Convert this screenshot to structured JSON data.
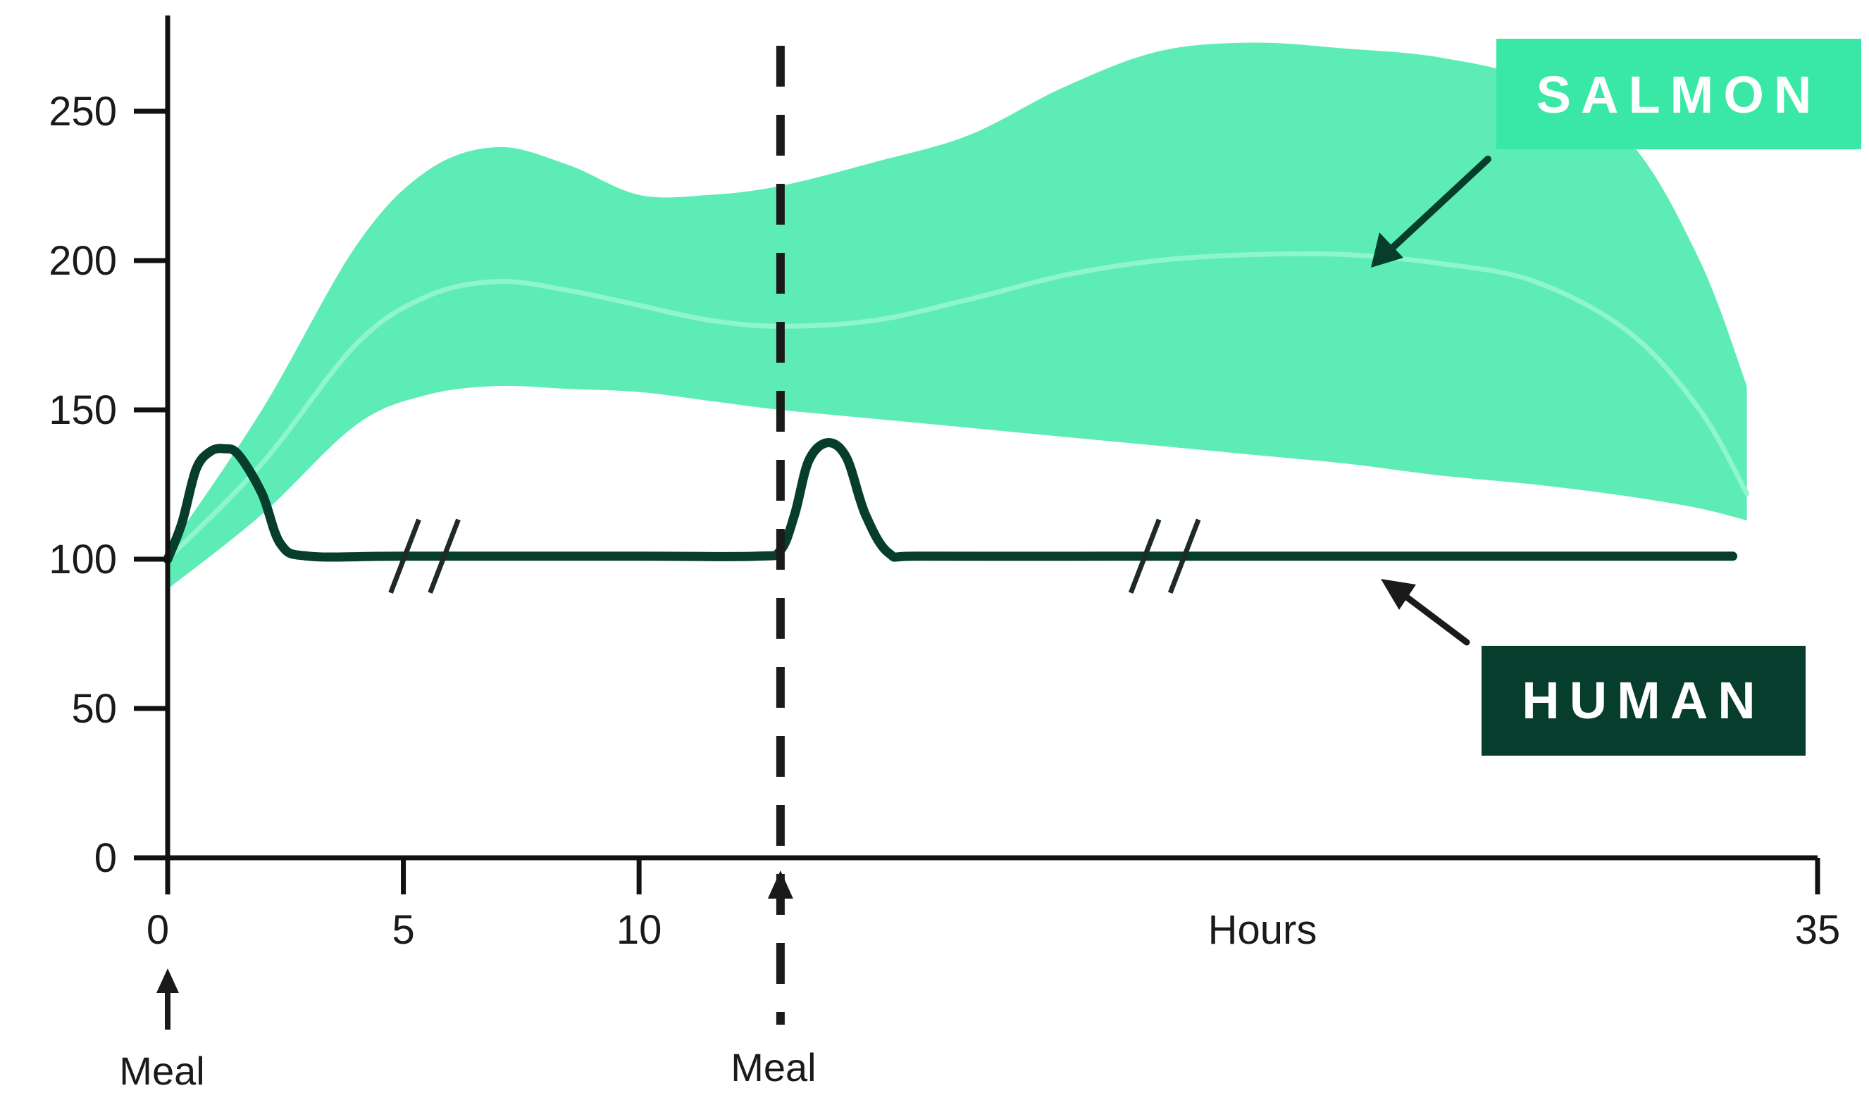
{
  "chart_data": {
    "type": "area",
    "title": "",
    "xlabel": "Hours",
    "ylabel": "",
    "xlim": [
      0,
      35
    ],
    "ylim": [
      0,
      275
    ],
    "x_ticks": [
      0,
      5,
      10,
      35
    ],
    "x_tick_labels": [
      "0",
      "5",
      "10",
      "35"
    ],
    "y_ticks": [
      0,
      50,
      100,
      150,
      200,
      250
    ],
    "y_tick_labels": [
      "0",
      "50",
      "100",
      "150",
      "200",
      "250"
    ],
    "grid": false,
    "meal_markers": [
      {
        "x": 0,
        "label": "Meal",
        "dashed_line": false
      },
      {
        "x": 13,
        "label": "Meal",
        "dashed_line": true
      }
    ],
    "axis_breaks_x": [
      5,
      21
    ],
    "series": [
      {
        "name": "SALMON",
        "kind": "band",
        "color": "#3ae8a6",
        "x": [
          0,
          2,
          4,
          5.5,
          7,
          8.5,
          10,
          11.5,
          13,
          15,
          17,
          19,
          21,
          23,
          25,
          27,
          29,
          31,
          32.5,
          33.5
        ],
        "upper": [
          103,
          150,
          205,
          230,
          238,
          232,
          222,
          222,
          225,
          233,
          242,
          258,
          270,
          273,
          271,
          268,
          260,
          240,
          200,
          158
        ],
        "lower": [
          90,
          115,
          145,
          155,
          158,
          157,
          156,
          153,
          150,
          147,
          144,
          141,
          138,
          135,
          132,
          128,
          125,
          121,
          117,
          113
        ],
        "mean": [
          100,
          132,
          172,
          188,
          193,
          190,
          185,
          180,
          178,
          180,
          187,
          195,
          200,
          202,
          202,
          199,
          193,
          176,
          150,
          122
        ]
      },
      {
        "name": "HUMAN",
        "kind": "line",
        "color": "#063d2c",
        "x": [
          0,
          0.3,
          0.6,
          0.9,
          1.2,
          1.5,
          2.0,
          2.4,
          3.0,
          5,
          10,
          12.5,
          13.0,
          13.3,
          13.6,
          14.0,
          14.4,
          14.8,
          15.3,
          16.0,
          20,
          25,
          30,
          33.2
        ],
        "values": [
          100,
          112,
          130,
          136,
          137,
          135,
          122,
          105,
          101,
          101,
          101,
          101,
          103,
          115,
          133,
          139,
          134,
          115,
          102,
          101,
          101,
          101,
          101,
          101
        ]
      }
    ],
    "legend": {
      "placement": "top-right",
      "entries": [
        "SALMON",
        "HUMAN"
      ]
    }
  }
}
